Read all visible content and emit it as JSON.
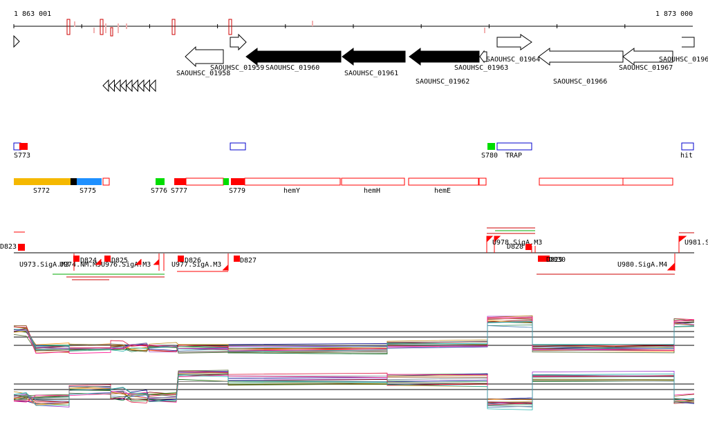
{
  "axis": {
    "start_label": "1 863 001",
    "end_label": "1 873 000"
  },
  "genes": [
    {
      "id": "g1958",
      "label": "SAOUHSC_01958",
      "strand": "-",
      "filled": false
    },
    {
      "id": "g1959",
      "label": "SAOUHSC_01959",
      "strand": "+",
      "filled": false
    },
    {
      "id": "g1960",
      "label": "SAOUHSC_01960",
      "strand": "-",
      "filled": true
    },
    {
      "id": "g1961",
      "label": "SAOUHSC_01961",
      "strand": "-",
      "filled": true
    },
    {
      "id": "g1962",
      "label": "SAOUHSC_01962",
      "strand": "-",
      "filled": true
    },
    {
      "id": "g1963",
      "label": "SAOUHSC_01963",
      "strand": "-",
      "filled": false
    },
    {
      "id": "g1964",
      "label": "SAOUHSC_01964",
      "strand": "+",
      "filled": false
    },
    {
      "id": "g1966",
      "label": "SAOUHSC_01966",
      "strand": "-",
      "filled": false
    },
    {
      "id": "g1967",
      "label": "SAOUHSC_01967",
      "strand": "-",
      "filled": false
    },
    {
      "id": "g196x",
      "label": "SAOUHSC_0196",
      "strand": "+",
      "filled": false
    }
  ],
  "features_row1": [
    {
      "label": "S773"
    },
    {
      "label": "S780"
    },
    {
      "label": "TRAP"
    },
    {
      "label": "hit"
    }
  ],
  "features_row2": [
    {
      "label": "S772"
    },
    {
      "label": "S775"
    },
    {
      "label": "S776"
    },
    {
      "label": "S777"
    },
    {
      "label": "S779"
    },
    {
      "label": "hemY"
    },
    {
      "label": "hemH"
    },
    {
      "label": "hemE"
    }
  ],
  "transcript_labels": [
    {
      "label": "D823"
    },
    {
      "label": "D824"
    },
    {
      "label": "D825"
    },
    {
      "label": "D826"
    },
    {
      "label": "D827"
    },
    {
      "label": "U973.SigA.M3"
    },
    {
      "label": "U974.NM.M5"
    },
    {
      "label": "U976.SigA.M3"
    },
    {
      "label": "U977.SigA.M3"
    },
    {
      "label": "U978.SigA.M3"
    },
    {
      "label": "D828"
    },
    {
      "label": "D829"
    },
    {
      "label": "D830"
    },
    {
      "label": "U980.SigA.M4"
    },
    {
      "label": "U981.S"
    }
  ],
  "colors": {
    "gene_filled": "#000000",
    "gene_open": "#ffffff",
    "feature_red": "#ff0000",
    "feature_orange": "#f5b800",
    "feature_blue": "#1e90ff",
    "feature_green": "#00dd00",
    "outline_blue": "#0000cc",
    "axis": "#000000"
  }
}
